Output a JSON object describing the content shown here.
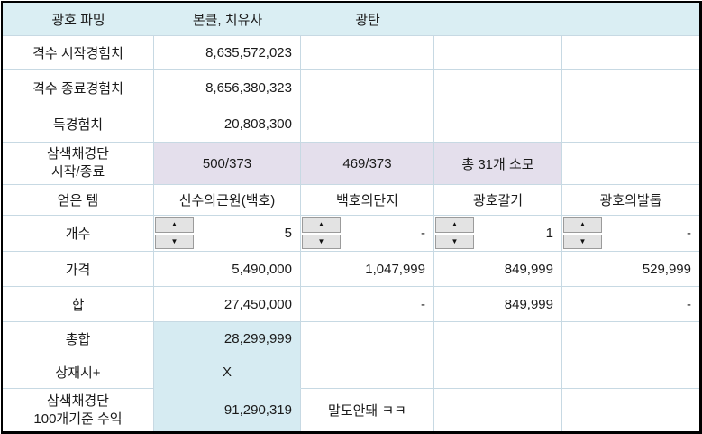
{
  "header": {
    "title": "광호 파밍",
    "party": "본클, 치유사",
    "mode": "광탄"
  },
  "rows": {
    "start_exp": {
      "label": "격수 시작경험치",
      "value": "8,635,572,023"
    },
    "end_exp": {
      "label": "격수 종료경험치",
      "value": "8,656,380,323"
    },
    "gained_exp": {
      "label": "득경험치",
      "value": "20,808,300"
    },
    "dango": {
      "label_line1": "삼색채경단",
      "label_line2": "시작/종료",
      "start": "500/373",
      "end": "469/373",
      "consumed": "총 31개 소모"
    },
    "items": {
      "label": "얻은 템",
      "item1": "신수의근원(백호)",
      "item2": "백호의단지",
      "item3": "광호갈기",
      "item4": "광호의발톱"
    },
    "counts": {
      "label": "개수",
      "v1": "5",
      "v2": "-",
      "v3": "1",
      "v4": "-"
    },
    "prices": {
      "label": "가격",
      "v1": "5,490,000",
      "v2": "1,047,999",
      "v3": "849,999",
      "v4": "529,999"
    },
    "sums": {
      "label": "합",
      "v1": "27,450,000",
      "v2": "-",
      "v3": "849,999",
      "v4": "-"
    },
    "total": {
      "label": "총합",
      "value": "28,299,999"
    },
    "sangjae": {
      "label": "상재시+",
      "value": "X"
    },
    "profit": {
      "label_line1": "삼색채경단",
      "label_line2": "100개기준 수익",
      "value": "91,290,319",
      "comment": "말도안돼 ㅋㅋ"
    }
  },
  "icons": {
    "up": "▲",
    "down": "▼"
  },
  "colors": {
    "header_bg": "#daeef3",
    "purple_bg": "#e4dfec",
    "highlight_bg": "#d6ebf2",
    "grid_line": "#c7d9e3",
    "outer_border": "#000000"
  }
}
